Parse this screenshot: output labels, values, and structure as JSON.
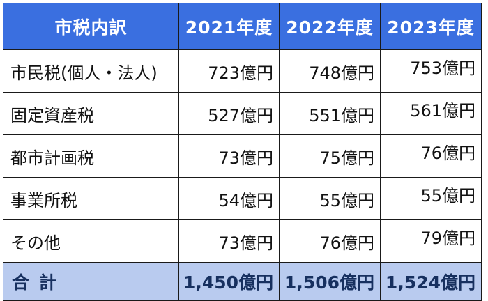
{
  "table": {
    "headers": [
      "市税内訳",
      "2021年度",
      "2022年度",
      "2023年度"
    ],
    "rows": [
      {
        "label": "市民税(個人・法人)",
        "values": [
          "723億円",
          "748億円",
          "753億円"
        ]
      },
      {
        "label": "固定資産税",
        "values": [
          "527億円",
          "551億円",
          "561億円"
        ]
      },
      {
        "label": "都市計画税",
        "values": [
          "73億円",
          "75億円",
          "76億円"
        ]
      },
      {
        "label": "事業所税",
        "values": [
          "54億円",
          "55億円",
          "55億円"
        ]
      },
      {
        "label": "その他",
        "values": [
          "73億円",
          "76億円",
          "79億円"
        ]
      }
    ],
    "total": {
      "label": "合計",
      "values": [
        "1,450億円",
        "1,506億円",
        "1,524億円"
      ]
    }
  },
  "colors": {
    "header_bg": "#3a6fe0",
    "header_text": "#ffffff",
    "total_bg": "#b9cbef",
    "total_text": "#17305f",
    "border": "#1a1a1a"
  }
}
